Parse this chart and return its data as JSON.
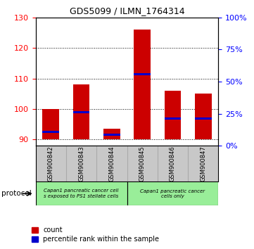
{
  "title": "GDS5099 / ILMN_1764314",
  "samples": [
    "GSM900842",
    "GSM900843",
    "GSM900844",
    "GSM900845",
    "GSM900846",
    "GSM900847"
  ],
  "bar_tops": [
    100.0,
    108.0,
    93.5,
    126.0,
    106.0,
    105.0
  ],
  "bar_bottom": 90,
  "blue_values": [
    92.5,
    99.0,
    91.5,
    111.5,
    97.0,
    97.0
  ],
  "ylim_left": [
    88,
    130
  ],
  "yticks_left": [
    90,
    100,
    110,
    120,
    130
  ],
  "yticks_right": [
    0,
    25,
    50,
    75,
    100
  ],
  "bar_color": "#cc0000",
  "blue_color": "#0000cc",
  "bar_width": 0.55,
  "bg_color": "#ffffff",
  "group1_color": "#99ee99",
  "group2_color": "#99ee99",
  "group1_label": "Capan1 pancreatic cancer cell\ns exposed to PS1 stellate cells",
  "group2_label": "Capan1 pancreatic cancer\ncells only",
  "legend_count_label": "count",
  "legend_pct_label": "percentile rank within the sample",
  "protocol_label": "protocol"
}
